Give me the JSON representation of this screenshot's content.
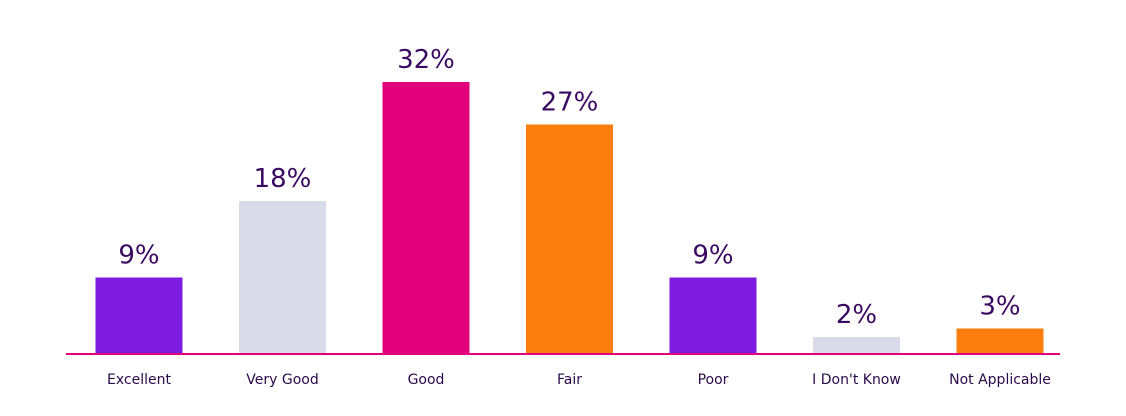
{
  "chart_data": {
    "type": "bar",
    "categories": [
      "Excellent",
      "Very Good",
      "Good",
      "Fair",
      "Poor",
      "I Don't Know",
      "Not Applicable"
    ],
    "values": [
      9,
      18,
      32,
      27,
      9,
      2,
      3
    ],
    "value_labels": [
      "9%",
      "18%",
      "32%",
      "27%",
      "9%",
      "2%",
      "3%"
    ],
    "bar_colors": [
      "#7e1be0",
      "#d9dbea",
      "#e3007b",
      "#fb7d0d",
      "#7e1be0",
      "#d9dbea",
      "#fb7d0d"
    ],
    "baseline_color": "#e3007b",
    "label_color": "#3a0a62",
    "title": "",
    "xlabel": "",
    "ylabel": "",
    "ylim": [
      0,
      32
    ],
    "grid": false,
    "legend": "none"
  }
}
